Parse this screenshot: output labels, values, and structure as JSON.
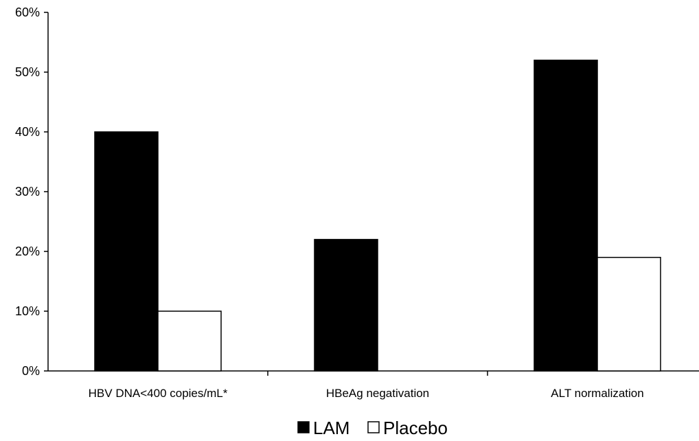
{
  "chart_data": {
    "type": "bar",
    "categories": [
      "HBV DNA<400 copies/mL*",
      "HBeAg negativation",
      "ALT normalization"
    ],
    "series": [
      {
        "name": "LAM",
        "values": [
          40,
          22,
          52
        ],
        "color": "#000000"
      },
      {
        "name": "Placebo",
        "values": [
          10,
          0,
          19
        ],
        "color": "#ffffff"
      }
    ],
    "yticks": [
      "0%",
      "10%",
      "20%",
      "30%",
      "40%",
      "50%",
      "60%"
    ],
    "ylim": [
      0,
      60
    ],
    "grid": false,
    "legend_position": "bottom-center"
  }
}
